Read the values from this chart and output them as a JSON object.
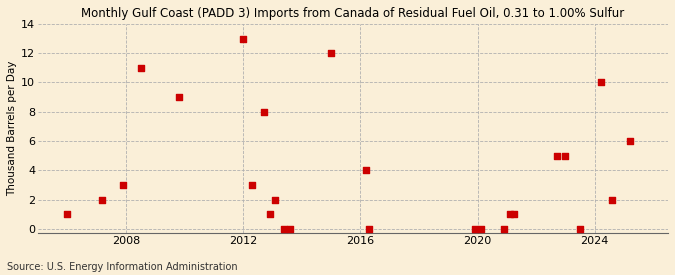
{
  "title": "Monthly Gulf Coast (PADD 3) Imports from Canada of Residual Fuel Oil, 0.31 to 1.00% Sulfur",
  "ylabel": "Thousand Barrels per Day",
  "source": "Source: U.S. Energy Information Administration",
  "background_color": "#faefd8",
  "marker_color": "#cc0000",
  "xlim": [
    2005.0,
    2026.5
  ],
  "ylim": [
    -0.3,
    14
  ],
  "yticks": [
    0,
    2,
    4,
    6,
    8,
    10,
    12,
    14
  ],
  "xticks": [
    2008,
    2012,
    2016,
    2020,
    2024
  ],
  "grid_color": "#b0b0b0",
  "x_data": [
    2006.0,
    2007.2,
    2007.9,
    2008.5,
    2009.8,
    2012.0,
    2012.3,
    2012.7,
    2012.9,
    2013.1,
    2013.4,
    2013.6,
    2015.0,
    2016.2,
    2016.3,
    2019.9,
    2020.1,
    2020.9,
    2021.1,
    2021.25,
    2022.7,
    2023.0,
    2023.5,
    2024.2,
    2024.6,
    2025.2
  ],
  "y_data": [
    1,
    2,
    3,
    11,
    9,
    13,
    3,
    8,
    1,
    2,
    0,
    0,
    12,
    4,
    0,
    0,
    0,
    0,
    1,
    1,
    5,
    5,
    0,
    10,
    2,
    6
  ],
  "marker_size": 25,
  "title_fontsize": 8.5,
  "ylabel_fontsize": 7.5,
  "tick_fontsize": 8,
  "source_fontsize": 7
}
